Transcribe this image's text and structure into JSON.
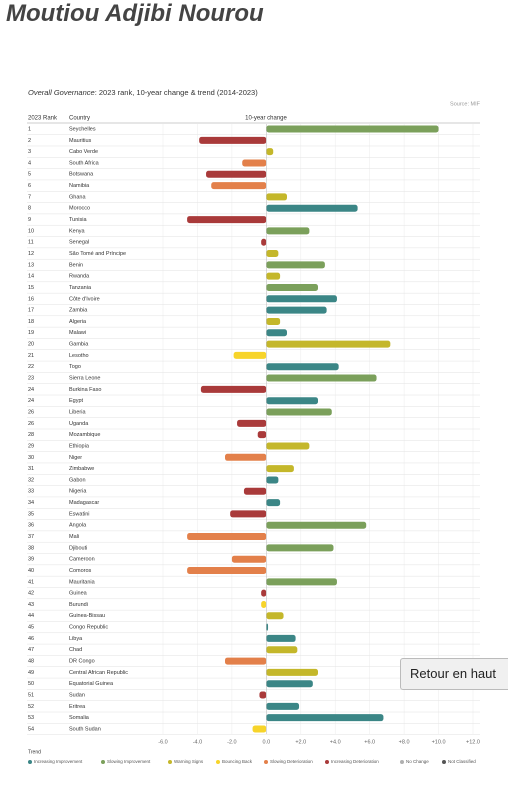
{
  "page_title": "Moutiou Adjibi Nourou",
  "retour_button": "Retour en haut",
  "chart_data": {
    "type": "bar",
    "orientation": "horizontal",
    "title_italic": "Overall Governance",
    "title_rest": ": 2023 rank, 10-year change & trend (2014-2023)",
    "source": "Source: MIF",
    "rank_header": "2023 Rank",
    "country_header": "Country",
    "value_header": "10-year change",
    "ranks": [
      1,
      2,
      3,
      4,
      5,
      6,
      7,
      8,
      9,
      10,
      11,
      12,
      13,
      14,
      15,
      16,
      17,
      18,
      19,
      20,
      21,
      22,
      23,
      24,
      24,
      26,
      26,
      28,
      29,
      30,
      31,
      32,
      33,
      34,
      35,
      36,
      37,
      38,
      39,
      40,
      41,
      42,
      43,
      44,
      45,
      46,
      47,
      48,
      49,
      50,
      51,
      52,
      53,
      54
    ],
    "categories": [
      "Seychelles",
      "Mauritius",
      "Cabo Verde",
      "South Africa",
      "Botswana",
      "Namibia",
      "Ghana",
      "Morocco",
      "Tunisia",
      "Kenya",
      "Senegal",
      "São Tomé and Príncipe",
      "Benin",
      "Rwanda",
      "Tanzania",
      "Côte d'Ivoire",
      "Zambia",
      "Algeria",
      "Malawi",
      "Gambia",
      "Lesotho",
      "Togo",
      "Sierra Leone",
      "Burkina Faso",
      "Egypt",
      "Liberia",
      "Uganda",
      "Mozambique",
      "Ethiopia",
      "Niger",
      "Zimbabwe",
      "Gabon",
      "Nigeria",
      "Madagascar",
      "Eswatini",
      "Angola",
      "Mali",
      "Djibouti",
      "Cameroon",
      "Comoros",
      "Mauritania",
      "Guinea",
      "Burundi",
      "Guinea-Bissau",
      "Congo Republic",
      "Libya",
      "Chad",
      "DR Congo",
      "Central African Republic",
      "Equatorial Guinea",
      "Sudan",
      "Eritrea",
      "Somalia",
      "South Sudan"
    ],
    "values": [
      10.0,
      -3.9,
      0.4,
      -1.4,
      -3.5,
      -3.2,
      1.2,
      5.3,
      -4.6,
      2.5,
      -0.3,
      0.7,
      3.4,
      0.8,
      3.0,
      4.1,
      3.5,
      0.8,
      1.2,
      7.2,
      -1.9,
      4.2,
      6.4,
      -3.8,
      3.0,
      3.8,
      -1.7,
      -0.5,
      2.5,
      -2.4,
      1.6,
      0.7,
      -1.3,
      0.8,
      -2.1,
      5.8,
      -4.6,
      3.9,
      -2.0,
      -4.6,
      4.1,
      -0.3,
      -0.3,
      1.0,
      0.1,
      1.7,
      1.8,
      -2.4,
      3.0,
      2.7,
      -0.4,
      1.9,
      6.8,
      -0.8
    ],
    "colors": [
      "#7ba05b",
      "#a93a3a",
      "#c4b72a",
      "#e3804a",
      "#a93a3a",
      "#e3804a",
      "#c4b72a",
      "#3b8686",
      "#a93a3a",
      "#7ba05b",
      "#a93a3a",
      "#c4b72a",
      "#7ba05b",
      "#c4b72a",
      "#7ba05b",
      "#3b8686",
      "#3b8686",
      "#c4b72a",
      "#3b8686",
      "#c4b72a",
      "#f7d42a",
      "#3b8686",
      "#7ba05b",
      "#a93a3a",
      "#3b8686",
      "#7ba05b",
      "#a93a3a",
      "#a93a3a",
      "#c4b72a",
      "#e3804a",
      "#c4b72a",
      "#3b8686",
      "#a93a3a",
      "#3b8686",
      "#a93a3a",
      "#7ba05b",
      "#e3804a",
      "#7ba05b",
      "#e3804a",
      "#e3804a",
      "#7ba05b",
      "#a93a3a",
      "#f7d42a",
      "#c4b72a",
      "#3b8686",
      "#3b8686",
      "#c4b72a",
      "#e3804a",
      "#c4b72a",
      "#3b8686",
      "#a93a3a",
      "#3b8686",
      "#3b8686",
      "#f7d42a"
    ],
    "xlim": [
      -6,
      12
    ],
    "xticks": [
      {
        "value": -6,
        "label": "-6.0"
      },
      {
        "value": -4,
        "label": "-4.0"
      },
      {
        "value": -2,
        "label": "-2.0"
      },
      {
        "value": 0,
        "label": "0.0"
      },
      {
        "value": 2,
        "label": "+2.0"
      },
      {
        "value": 4,
        "label": "+4.0"
      },
      {
        "value": 6,
        "label": "+6.0"
      },
      {
        "value": 8,
        "label": "+8.0"
      },
      {
        "value": 10,
        "label": "+10.0"
      },
      {
        "value": 12,
        "label": "+12.0"
      }
    ],
    "grid": true,
    "legend_title": "Trend",
    "legend": [
      {
        "name": "Increasing Improvement",
        "color": "#3b8686"
      },
      {
        "name": "Slowing Improvement",
        "color": "#7ba05b"
      },
      {
        "name": "Warning Signs",
        "color": "#c4b72a"
      },
      {
        "name": "Bouncing Back",
        "color": "#f7d42a"
      },
      {
        "name": "Slowing Deterioration",
        "color": "#e3804a"
      },
      {
        "name": "Increasing Deterioration",
        "color": "#a93a3a"
      },
      {
        "name": "No Change",
        "color": "#b0b0b0"
      },
      {
        "name": "Not Classified",
        "color": "#555555"
      }
    ]
  }
}
